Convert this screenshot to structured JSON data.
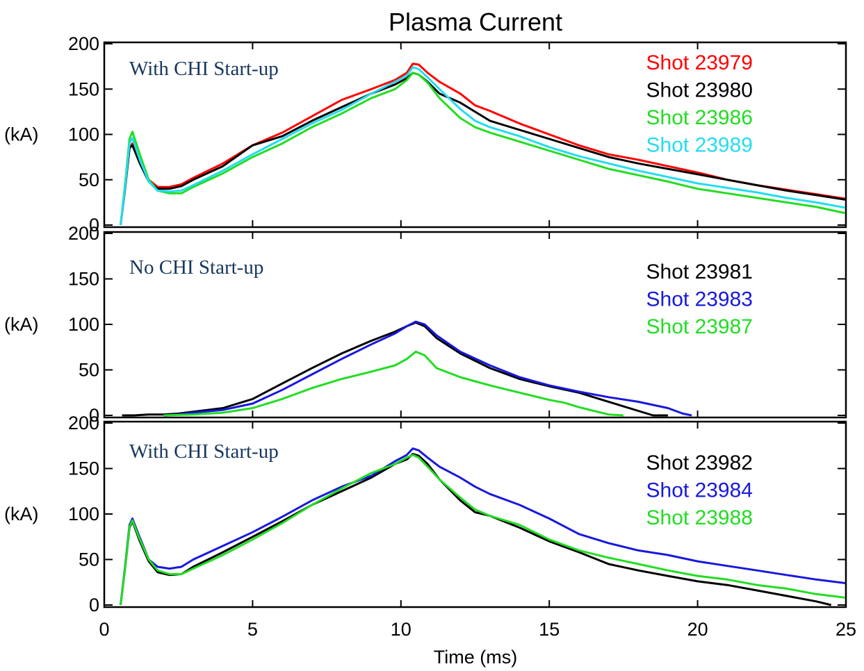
{
  "chart_data": {
    "type": "line",
    "title": "Plasma Current",
    "xlabel": "Time (ms)",
    "xlim": [
      0,
      25
    ],
    "xticks": [
      0,
      5,
      10,
      15,
      20,
      25
    ],
    "panels": [
      {
        "annotation": "With CHI Start-up",
        "ylabel": "(kA)",
        "ylim": [
          0,
          200
        ],
        "yticks": [
          0,
          50,
          100,
          150,
          200
        ],
        "series": [
          {
            "name": "Shot 23979",
            "color": "#ff0000",
            "x": [
              0.55,
              0.7,
              0.85,
              0.95,
              1.2,
              1.5,
              1.8,
              2.2,
              2.6,
              3.0,
              4.0,
              5.0,
              6.0,
              7.0,
              8.0,
              9.0,
              9.8,
              10.2,
              10.4,
              10.6,
              10.9,
              11.3,
              12.0,
              12.5,
              13.0,
              14.0,
              15.0,
              16.0,
              17.0,
              18.0,
              19.0,
              20.0,
              21.0,
              22.0,
              23.0,
              24.0,
              25.0
            ],
            "y": [
              0,
              40,
              85,
              90,
              70,
              50,
              42,
              42,
              45,
              52,
              68,
              88,
              102,
              120,
              138,
              150,
              160,
              168,
              178,
              177,
              168,
              158,
              145,
              132,
              126,
              112,
              100,
              88,
              78,
              72,
              65,
              58,
              50,
              44,
              39,
              34,
              29
            ]
          },
          {
            "name": "Shot 23980",
            "color": "#000000",
            "x": [
              0.55,
              0.7,
              0.85,
              0.95,
              1.2,
              1.5,
              1.8,
              2.2,
              2.6,
              3.0,
              4.0,
              5.0,
              6.0,
              7.0,
              8.0,
              9.0,
              9.8,
              10.2,
              10.4,
              10.6,
              10.9,
              11.3,
              12.0,
              12.5,
              13.0,
              14.0,
              15.0,
              16.0,
              17.0,
              18.0,
              19.0,
              20.0,
              21.0,
              22.0,
              23.0,
              24.0,
              25.0
            ],
            "y": [
              0,
              40,
              85,
              88,
              68,
              48,
              40,
              40,
              43,
              50,
              65,
              88,
              98,
              115,
              130,
              145,
              155,
              162,
              168,
              166,
              158,
              145,
              135,
              125,
              115,
              105,
              95,
              85,
              75,
              68,
              62,
              56,
              50,
              44,
              38,
              33,
              28
            ]
          },
          {
            "name": "Shot 23986",
            "color": "#22dd22",
            "x": [
              0.55,
              0.7,
              0.85,
              0.95,
              1.2,
              1.5,
              1.8,
              2.2,
              2.6,
              3.0,
              4.0,
              5.0,
              6.0,
              7.0,
              8.0,
              9.0,
              9.8,
              10.2,
              10.4,
              10.6,
              10.9,
              11.3,
              12.0,
              12.5,
              13.0,
              14.0,
              15.0,
              16.0,
              17.0,
              18.0,
              19.0,
              20.0,
              21.0,
              22.0,
              23.0,
              24.0,
              25.0
            ],
            "y": [
              0,
              45,
              95,
              103,
              78,
              50,
              38,
              35,
              35,
              42,
              57,
              75,
              90,
              108,
              123,
              140,
              150,
              160,
              168,
              166,
              157,
              140,
              118,
              108,
              102,
              92,
              82,
              72,
              62,
              55,
              48,
              40,
              35,
              30,
              25,
              20,
              13
            ]
          },
          {
            "name": "Shot 23989",
            "color": "#22ddee",
            "x": [
              0.55,
              0.7,
              0.85,
              0.95,
              1.2,
              1.5,
              1.8,
              2.2,
              2.6,
              3.0,
              4.0,
              5.0,
              6.0,
              7.0,
              8.0,
              9.0,
              9.8,
              10.2,
              10.4,
              10.6,
              10.9,
              11.3,
              12.0,
              12.5,
              13.0,
              14.0,
              15.0,
              16.0,
              17.0,
              18.0,
              19.0,
              20.0,
              21.0,
              22.0,
              23.0,
              24.0,
              25.0
            ],
            "y": [
              0,
              42,
              90,
              96,
              72,
              48,
              38,
              37,
              38,
              44,
              60,
              78,
              95,
              112,
              127,
              145,
              158,
              165,
              174,
              172,
              163,
              150,
              128,
              115,
              108,
              98,
              86,
              76,
              68,
              60,
              53,
              46,
              41,
              36,
              30,
              25,
              19
            ]
          }
        ]
      },
      {
        "annotation": "No CHI Start-up",
        "ylabel": "(kA)",
        "ylim": [
          0,
          200
        ],
        "yticks": [
          0,
          50,
          100,
          150,
          200
        ],
        "series": [
          {
            "name": "Shot 23981",
            "color": "#000000",
            "x": [
              0.6,
              1.0,
              1.5,
              2.0,
              2.5,
              3.0,
              4.0,
              5.0,
              6.0,
              7.0,
              8.0,
              9.0,
              9.8,
              10.2,
              10.5,
              10.8,
              11.2,
              12.0,
              13.0,
              14.0,
              15.0,
              16.0,
              17.0,
              18.0,
              18.5,
              19.0
            ],
            "y": [
              0,
              0,
              1,
              1,
              2,
              4,
              8,
              18,
              35,
              52,
              68,
              82,
              92,
              98,
              102,
              98,
              85,
              68,
              52,
              40,
              32,
              25,
              15,
              5,
              0,
              0
            ]
          },
          {
            "name": "Shot 23983",
            "color": "#1818dd",
            "x": [
              2.0,
              2.5,
              3.0,
              4.0,
              5.0,
              6.0,
              7.0,
              8.0,
              9.0,
              9.8,
              10.2,
              10.5,
              10.8,
              11.2,
              12.0,
              13.0,
              14.0,
              15.0,
              16.0,
              17.0,
              18.0,
              19.0,
              19.5,
              19.8
            ],
            "y": [
              0,
              1,
              3,
              6,
              13,
              28,
              45,
              62,
              78,
              90,
              98,
              103,
              100,
              88,
              70,
              55,
              42,
              33,
              26,
              20,
              15,
              8,
              2,
              0
            ]
          },
          {
            "name": "Shot 23987",
            "color": "#22dd22",
            "x": [
              2.0,
              3.0,
              4.0,
              5.0,
              6.0,
              7.0,
              8.0,
              9.0,
              9.8,
              10.2,
              10.5,
              10.8,
              11.2,
              12.0,
              13.0,
              14.0,
              15.0,
              15.5,
              16.0,
              16.5,
              17.0,
              17.5
            ],
            "y": [
              0,
              1,
              3,
              8,
              18,
              30,
              40,
              48,
              55,
              62,
              70,
              66,
              52,
              42,
              33,
              25,
              17,
              14,
              9,
              5,
              1,
              0
            ]
          }
        ]
      },
      {
        "annotation": "With CHI Start-up",
        "ylabel": "(kA)",
        "ylim": [
          0,
          200
        ],
        "yticks": [
          0,
          50,
          100,
          150,
          200
        ],
        "series": [
          {
            "name": "Shot 23982",
            "color": "#000000",
            "x": [
              0.55,
              0.7,
              0.85,
              0.95,
              1.2,
              1.5,
              1.8,
              2.2,
              2.6,
              3.0,
              4.0,
              5.0,
              6.0,
              7.0,
              8.0,
              9.0,
              9.8,
              10.2,
              10.4,
              10.6,
              10.9,
              11.3,
              12.0,
              12.5,
              13.0,
              14.0,
              15.0,
              16.0,
              17.0,
              18.0,
              19.0,
              20.0,
              21.0,
              22.0,
              23.0,
              24.0,
              24.5
            ],
            "y": [
              0,
              40,
              85,
              92,
              70,
              48,
              36,
              33,
              34,
              42,
              58,
              75,
              92,
              110,
              125,
              140,
              155,
              160,
              166,
              164,
              155,
              138,
              115,
              102,
              98,
              85,
              70,
              58,
              45,
              38,
              32,
              26,
              22,
              16,
              10,
              4,
              0
            ]
          },
          {
            "name": "Shot 23984",
            "color": "#1818dd",
            "x": [
              0.55,
              0.7,
              0.85,
              0.95,
              1.2,
              1.5,
              1.8,
              2.2,
              2.6,
              3.0,
              4.0,
              5.0,
              6.0,
              7.0,
              8.0,
              9.0,
              9.8,
              10.2,
              10.4,
              10.6,
              10.9,
              11.3,
              12.0,
              12.5,
              13.0,
              14.0,
              15.0,
              16.0,
              17.0,
              18.0,
              19.0,
              20.0,
              21.0,
              22.0,
              23.0,
              24.0,
              25.0
            ],
            "y": [
              0,
              42,
              88,
              95,
              74,
              50,
              42,
              40,
              42,
              50,
              65,
              80,
              97,
              115,
              130,
              142,
              158,
              165,
              172,
              170,
              162,
              152,
              140,
              130,
              122,
              110,
              95,
              78,
              68,
              60,
              55,
              48,
              43,
              38,
              33,
              28,
              24
            ]
          },
          {
            "name": "Shot 23988",
            "color": "#22dd22",
            "x": [
              0.55,
              0.7,
              0.85,
              0.95,
              1.2,
              1.5,
              1.8,
              2.2,
              2.6,
              3.0,
              4.0,
              5.0,
              6.0,
              7.0,
              8.0,
              9.0,
              9.8,
              10.2,
              10.4,
              10.6,
              10.9,
              11.3,
              12.0,
              12.5,
              13.0,
              14.0,
              15.0,
              16.0,
              17.0,
              18.0,
              19.0,
              20.0,
              21.0,
              22.0,
              23.0,
              24.0,
              25.0
            ],
            "y": [
              0,
              40,
              86,
              93,
              72,
              50,
              38,
              34,
              34,
              40,
              55,
              72,
              90,
              110,
              128,
              145,
              155,
              162,
              165,
              162,
              152,
              138,
              118,
              105,
              98,
              88,
              72,
              60,
              52,
              45,
              38,
              32,
              28,
              22,
              18,
              12,
              8
            ]
          }
        ]
      }
    ]
  }
}
